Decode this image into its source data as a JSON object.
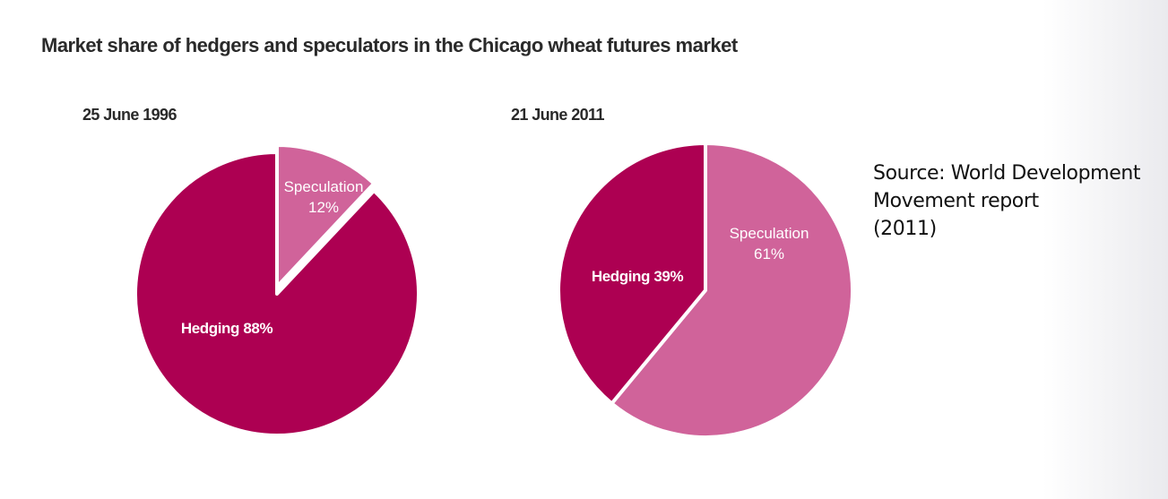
{
  "title": "Market share of hedgers and speculators in the Chicago wheat futures market",
  "source_lines": [
    "Source: World Development",
    "Movement report",
    "(2011)"
  ],
  "colors": {
    "hedging": "#ad0052",
    "speculation": "#d0639a",
    "text": "#2a2a2a"
  },
  "chart_data": [
    {
      "type": "pie",
      "title": "25 June 1996",
      "slices": [
        {
          "label": "Speculation",
          "value_label": "12%",
          "value": 12
        },
        {
          "label": "Hedging",
          "value_label": "88%",
          "value": 88
        }
      ]
    },
    {
      "type": "pie",
      "title": "21 June 2011",
      "slices": [
        {
          "label": "Speculation",
          "value_label": "61%",
          "value": 61
        },
        {
          "label": "Hedging",
          "value_label": "39%",
          "value": 39
        }
      ]
    }
  ]
}
